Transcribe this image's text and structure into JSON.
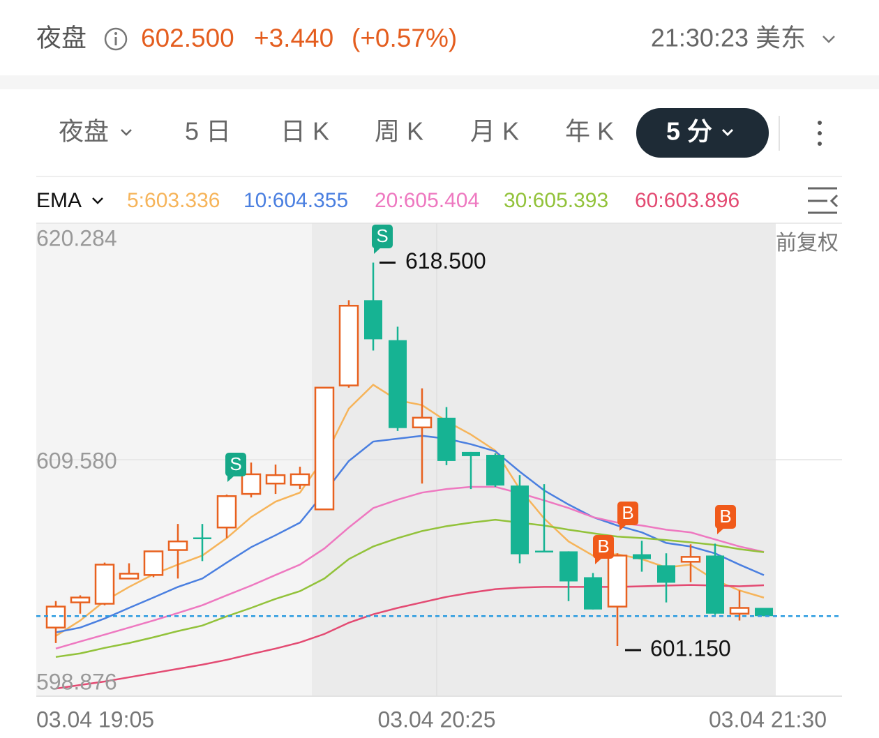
{
  "header": {
    "session": "夜盘",
    "price": "602.500",
    "change": "+3.440",
    "change_pct": "(+0.57%)",
    "time": "21:30:23 美东"
  },
  "tabs": [
    "夜盘",
    "5 日",
    "日 K",
    "周 K",
    "月 K",
    "年 K",
    "5 分"
  ],
  "indicator": {
    "name": "EMA",
    "items": [
      "5:603.336",
      "10:604.355",
      "20:605.404",
      "30:605.393",
      "60:603.896"
    ],
    "adjust": "前复权"
  },
  "chart_data": {
    "type": "candlestick",
    "categories": [
      "03.04 19:05",
      null,
      null,
      null,
      null,
      null,
      null,
      null,
      null,
      null,
      null,
      null,
      null,
      null,
      null,
      null,
      "03.04 20:25",
      null,
      null,
      null,
      null,
      null,
      null,
      null,
      null,
      null,
      null,
      null,
      null,
      "03.04 21:30"
    ],
    "open": [
      601.98,
      603.12,
      603.06,
      604.2,
      604.36,
      605.49,
      606.06,
      606.51,
      608.03,
      608.5,
      608.44,
      607.33,
      612.94,
      616.8,
      614.99,
      611.04,
      611.48,
      609.93,
      609.8,
      608.41,
      605.46,
      605.43,
      604.26,
      602.93,
      605.3,
      604.8,
      604.96,
      605.24,
      602.61,
      602.87
    ],
    "high": [
      603.18,
      603.44,
      604.92,
      604.89,
      605.43,
      606.67,
      606.67,
      608.0,
      609.45,
      609.36,
      609.26,
      612.84,
      616.8,
      618.5,
      615.6,
      612.81,
      611.96,
      609.93,
      609.87,
      608.88,
      608.47,
      605.43,
      604.45,
      605.34,
      605.91,
      605.34,
      605.75,
      605.78,
      603.66,
      602.87
    ],
    "low": [
      601.28,
      602.61,
      602.99,
      604.2,
      604.26,
      604.2,
      604.99,
      606.03,
      607.87,
      608.03,
      608.25,
      607.33,
      612.84,
      614.52,
      610.88,
      608.5,
      609.33,
      608.25,
      608.35,
      604.89,
      605.43,
      603.18,
      602.8,
      601.15,
      604.51,
      603.12,
      604.04,
      602.55,
      602.3,
      602.49
    ],
    "close": [
      602.93,
      603.34,
      604.83,
      604.42,
      605.43,
      605.88,
      606.03,
      607.93,
      608.92,
      608.88,
      608.92,
      612.84,
      616.55,
      615.03,
      611.01,
      611.48,
      609.52,
      609.74,
      608.41,
      605.3,
      605.43,
      604.07,
      602.8,
      605.24,
      605.08,
      604.01,
      605.18,
      602.61,
      602.87,
      602.5
    ],
    "up_color": "#e8611f",
    "down_color": "#16b393",
    "series": [
      {
        "color": "#f6b45a",
        "values": [
          601.6,
          602.3,
          603.18,
          603.82,
          604.39,
          604.83,
          605.24,
          606.03,
          606.98,
          607.68,
          608.09,
          609.68,
          611.89,
          612.97,
          612.27,
          612.05,
          611.32,
          610.72,
          609.99,
          608.25,
          606.92,
          605.88,
          605.24,
          605.3,
          605.08,
          604.7,
          604.83,
          604.13,
          603.66,
          603.336
        ]
      },
      {
        "color": "#4a7fe0",
        "values": [
          601.76,
          601.98,
          602.39,
          602.87,
          603.34,
          603.82,
          604.2,
          604.92,
          605.62,
          606.16,
          606.73,
          608.09,
          609.52,
          610.4,
          610.53,
          610.66,
          610.53,
          610.28,
          609.96,
          609.04,
          608.19,
          607.55,
          606.98,
          606.6,
          606.29,
          605.81,
          605.65,
          605.34,
          604.83,
          604.355
        ]
      },
      {
        "color": "#ee78c0",
        "values": [
          601.03,
          601.35,
          601.66,
          601.98,
          602.3,
          602.64,
          602.99,
          603.44,
          603.88,
          604.36,
          604.83,
          605.56,
          606.51,
          607.39,
          607.77,
          608.09,
          608.25,
          608.35,
          608.35,
          608.06,
          607.74,
          607.39,
          606.98,
          606.73,
          606.6,
          606.41,
          606.29,
          605.97,
          605.65,
          605.404
        ]
      },
      {
        "color": "#92c23a",
        "values": [
          600.65,
          600.81,
          601.06,
          601.28,
          601.54,
          601.82,
          602.07,
          602.49,
          602.87,
          603.28,
          603.63,
          604.2,
          605.08,
          605.65,
          606.03,
          606.35,
          606.57,
          606.73,
          606.86,
          606.73,
          606.6,
          606.41,
          606.25,
          606.1,
          606.03,
          605.94,
          605.84,
          605.72,
          605.53,
          605.393
        ]
      },
      {
        "color": "#e34a72",
        "values": [
          599.22,
          599.38,
          599.54,
          599.73,
          599.92,
          600.11,
          600.3,
          600.52,
          600.78,
          601.03,
          601.31,
          601.69,
          602.2,
          602.58,
          602.87,
          603.12,
          603.37,
          603.56,
          603.72,
          603.79,
          603.82,
          603.82,
          603.82,
          603.82,
          603.85,
          603.88,
          603.91,
          603.88,
          603.85,
          603.896
        ]
      }
    ],
    "ylim": [
      598.876,
      620.284
    ],
    "yticks": [
      620.284,
      609.58,
      598.876
    ],
    "yticklabels": [
      "620.284",
      "609.580",
      "598.876"
    ],
    "last_price": 602.5,
    "last_price_color": "#2a9be0",
    "annotations": [
      "618.500",
      "601.150"
    ],
    "trade_markers": [
      "S",
      "S",
      "B",
      "B",
      "B"
    ],
    "grid": true
  }
}
